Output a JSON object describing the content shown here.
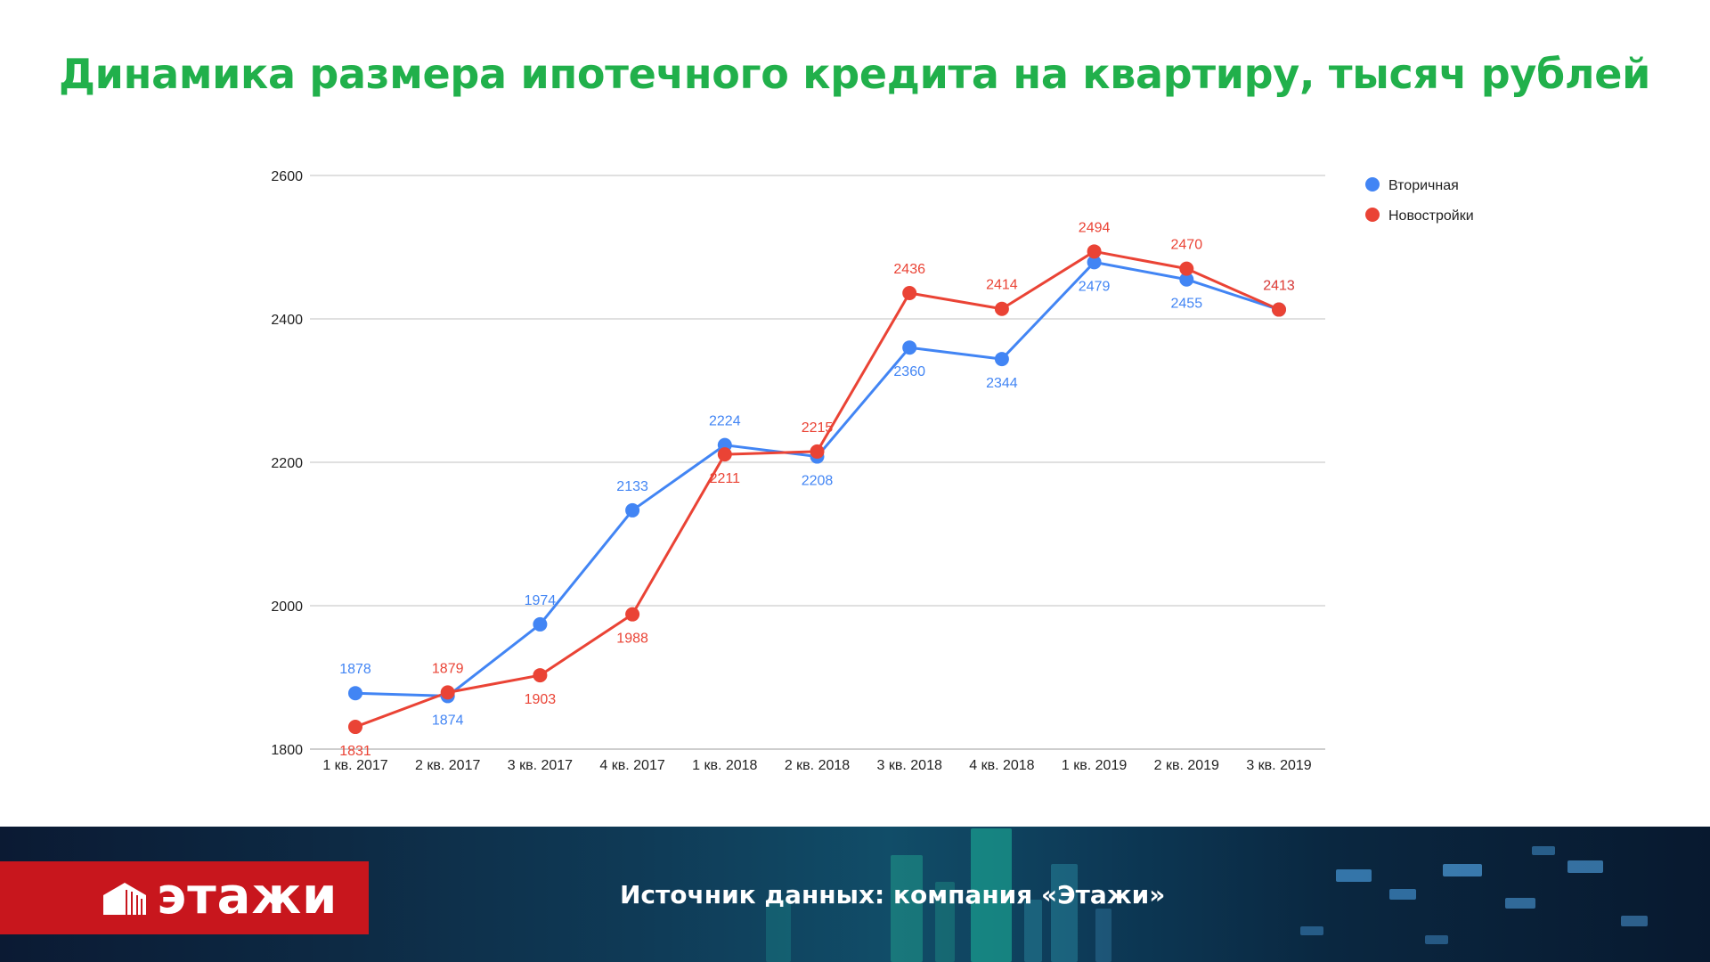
{
  "header": {
    "title": "Динамика размера ипотечного кредита на квартиру, тысяч рублей"
  },
  "footer": {
    "logo_text": "этажи",
    "source_text": "Источник данных: компания «Этажи»"
  },
  "colors": {
    "title": "#21b04b",
    "secondary_series": "#4285f4",
    "new_series": "#ea4335",
    "logo_bg": "#c8161d"
  },
  "chart_data": {
    "type": "line",
    "categories": [
      "1 кв. 2017",
      "2 кв. 2017",
      "3 кв. 2017",
      "4 кв. 2017",
      "1 кв. 2018",
      "2 кв. 2018",
      "3 кв. 2018",
      "4 кв. 2018",
      "1 кв. 2019",
      "2 кв. 2019",
      "3 кв. 2019"
    ],
    "series": [
      {
        "name": "Вторичная",
        "color": "#4285f4",
        "values": [
          1878,
          1874,
          1974,
          2133,
          2224,
          2208,
          2360,
          2344,
          2479,
          2455,
          2413
        ]
      },
      {
        "name": "Новостройки",
        "color": "#ea4335",
        "values": [
          1831,
          1879,
          1903,
          1988,
          2211,
          2215,
          2436,
          2414,
          2494,
          2470,
          2413
        ]
      }
    ],
    "yticks": [
      "1800",
      "2000",
      "2200",
      "2400",
      "2600"
    ],
    "ylim": [
      1800,
      2600
    ],
    "grid": true,
    "legend_position": "top-right"
  }
}
